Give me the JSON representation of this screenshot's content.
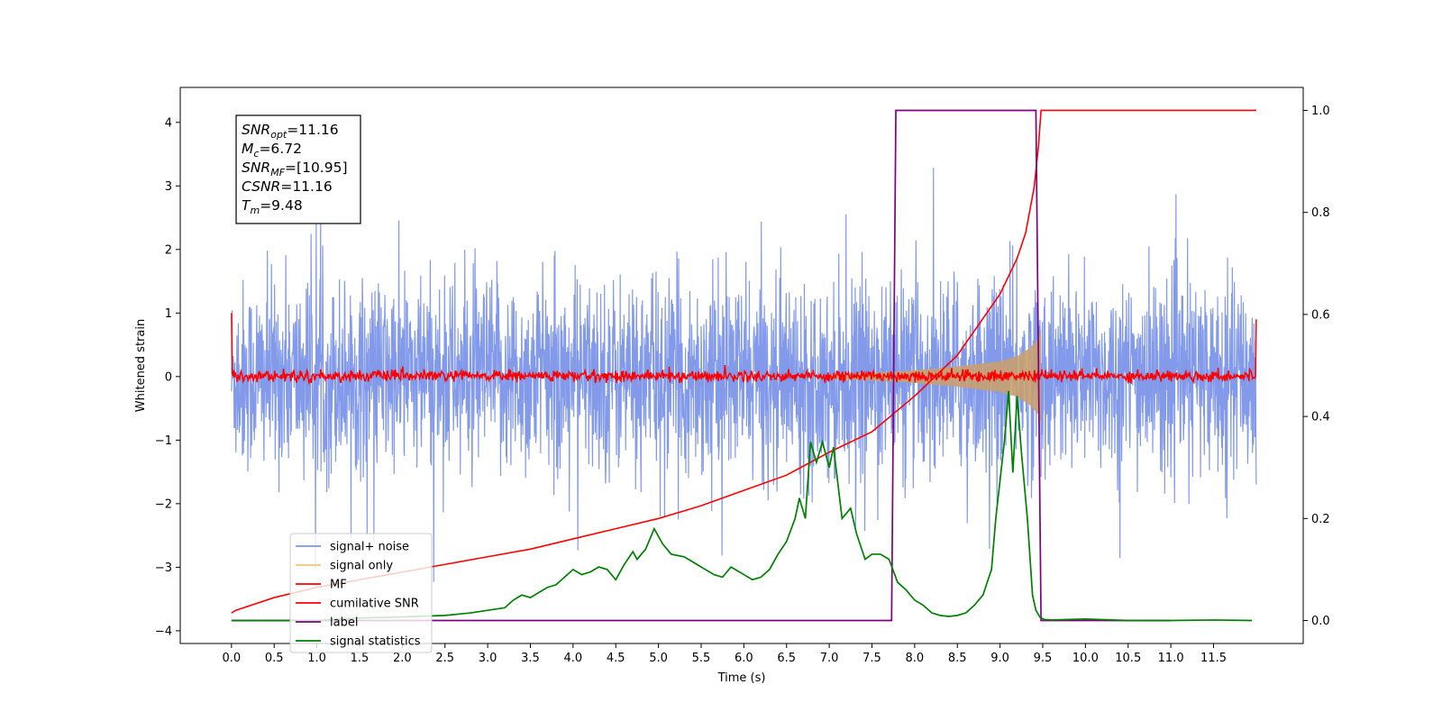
{
  "chart_data": {
    "type": "line",
    "xlabel": "Time (s)",
    "ylabel": "Whitened strain",
    "xlim": [
      -0.6,
      12.55
    ],
    "ylim_left": [
      -4.2,
      4.55
    ],
    "ylim_right": [
      -0.045,
      1.045
    ],
    "x_ticks": [
      0.0,
      0.5,
      1.0,
      1.5,
      2.0,
      2.5,
      3.0,
      3.5,
      4.0,
      4.5,
      5.0,
      5.5,
      6.0,
      6.5,
      7.0,
      7.5,
      8.0,
      8.5,
      9.0,
      9.5,
      10.0,
      10.5,
      11.0,
      11.5
    ],
    "x_tick_labels": [
      "0.0",
      "0.5",
      "1.0",
      "1.5",
      "2.0",
      "2.5",
      "3.0",
      "3.5",
      "4.0",
      "4.5",
      "5.0",
      "5.5",
      "6.0",
      "6.5",
      "7.0",
      "7.5",
      "8.0",
      "8.5",
      "9.0",
      "9.5",
      "10.0",
      "10.5",
      "11.0",
      "11.5"
    ],
    "y_left_ticks": [
      4,
      3,
      2,
      1,
      0,
      -1,
      -2,
      -3,
      -4
    ],
    "y_left_tick_labels": [
      "4",
      "3",
      "2",
      "1",
      "0",
      "−1",
      "−2",
      "−3",
      "−4"
    ],
    "y_right_ticks": [
      1.0,
      0.8,
      0.6,
      0.4,
      0.2,
      0.0
    ],
    "y_right_tick_labels": [
      "1.0",
      "0.8",
      "0.6",
      "0.4",
      "0.2",
      "0.0"
    ],
    "annotation": {
      "lines": [
        {
          "main": "SNR",
          "sub": "opt",
          "value": "=11.16"
        },
        {
          "main": "M",
          "sub": "c",
          "value": "=6.72"
        },
        {
          "main": "SNR",
          "sub": "MF",
          "value": "=[10.95]"
        },
        {
          "main": "CSNR",
          "sub": "",
          "value": "=11.16"
        },
        {
          "main": "T",
          "sub": "m",
          "value": "=9.48"
        }
      ]
    },
    "legend": {
      "location": "lower-left",
      "entries": [
        {
          "label": "signal+ noise",
          "color": "#7b95e8"
        },
        {
          "label": "signal only",
          "color": "#f2c277"
        },
        {
          "label": "MF",
          "color": "#ff0000"
        },
        {
          "label": "cumilative SNR",
          "color": "#ff0000"
        },
        {
          "label": "label",
          "color": "#800080"
        },
        {
          "label": "signal statistics",
          "color": "#008000"
        }
      ]
    },
    "series": [
      {
        "name": "signal+ noise",
        "axis": "left",
        "color": "#7b95e8",
        "x_range": [
          0.0,
          12.0
        ],
        "typical_envelope": [
          -1.5,
          1.5
        ],
        "peak_max": 3.9,
        "peak_min": -3.65
      },
      {
        "name": "signal only",
        "axis": "left",
        "color": "#c8a070",
        "x": [
          7.0,
          7.5,
          8.0,
          8.5,
          9.0,
          9.2,
          9.35,
          9.45,
          9.48
        ],
        "envelope": [
          0.03,
          0.06,
          0.1,
          0.16,
          0.24,
          0.32,
          0.45,
          0.6,
          0.75
        ]
      },
      {
        "name": "MF",
        "axis": "left",
        "color": "#ff0000",
        "x_range": [
          0.0,
          12.0
        ],
        "typical_envelope": [
          -0.1,
          0.12
        ],
        "start_value": 1.0,
        "end_value": 0.9
      },
      {
        "name": "cumilative SNR",
        "axis": "right",
        "color": "#ff0000",
        "x": [
          0.0,
          0.05,
          0.5,
          1.0,
          1.5,
          2.0,
          2.5,
          3.0,
          3.5,
          4.0,
          4.5,
          5.0,
          5.5,
          6.0,
          6.5,
          7.0,
          7.5,
          8.0,
          8.5,
          9.0,
          9.2,
          9.3,
          9.4,
          9.45,
          9.48,
          12.0
        ],
        "y": [
          0.015,
          0.02,
          0.045,
          0.065,
          0.08,
          0.095,
          0.11,
          0.125,
          0.14,
          0.16,
          0.18,
          0.2,
          0.225,
          0.255,
          0.285,
          0.33,
          0.37,
          0.44,
          0.52,
          0.64,
          0.71,
          0.76,
          0.85,
          0.93,
          1.0,
          1.0
        ]
      },
      {
        "name": "label",
        "axis": "right",
        "color": "#800080",
        "x": [
          0.0,
          7.73,
          7.78,
          9.42,
          9.48,
          11.0
        ],
        "y": [
          0.0,
          0.0,
          1.0,
          1.0,
          0.0,
          0.0
        ]
      },
      {
        "name": "signal statistics",
        "axis": "right",
        "color": "#008000",
        "x": [
          0.0,
          0.5,
          1.0,
          1.5,
          2.0,
          2.5,
          2.8,
          3.0,
          3.2,
          3.3,
          3.4,
          3.5,
          3.6,
          3.7,
          3.8,
          3.9,
          4.0,
          4.1,
          4.2,
          4.3,
          4.4,
          4.5,
          4.6,
          4.7,
          4.75,
          4.85,
          4.95,
          5.05,
          5.15,
          5.3,
          5.45,
          5.55,
          5.65,
          5.75,
          5.85,
          6.0,
          6.1,
          6.2,
          6.3,
          6.4,
          6.5,
          6.6,
          6.65,
          6.72,
          6.78,
          6.85,
          6.92,
          7.0,
          7.05,
          7.15,
          7.25,
          7.32,
          7.42,
          7.5,
          7.6,
          7.7,
          7.8,
          7.9,
          8.0,
          8.1,
          8.2,
          8.3,
          8.4,
          8.5,
          8.6,
          8.7,
          8.8,
          8.9,
          8.95,
          9.05,
          9.1,
          9.15,
          9.2,
          9.25,
          9.32,
          9.38,
          9.42,
          9.47,
          9.52,
          9.6,
          9.8,
          10.0,
          10.5,
          11.0,
          11.5,
          11.95
        ],
        "y": [
          0.0,
          0.0,
          0.0,
          0.005,
          0.007,
          0.01,
          0.015,
          0.02,
          0.025,
          0.04,
          0.05,
          0.045,
          0.055,
          0.065,
          0.07,
          0.085,
          0.1,
          0.09,
          0.095,
          0.105,
          0.1,
          0.08,
          0.11,
          0.135,
          0.12,
          0.14,
          0.18,
          0.15,
          0.13,
          0.125,
          0.11,
          0.1,
          0.09,
          0.085,
          0.105,
          0.09,
          0.08,
          0.085,
          0.1,
          0.13,
          0.155,
          0.2,
          0.24,
          0.2,
          0.35,
          0.31,
          0.35,
          0.3,
          0.34,
          0.2,
          0.22,
          0.17,
          0.12,
          0.13,
          0.13,
          0.12,
          0.075,
          0.06,
          0.04,
          0.03,
          0.015,
          0.01,
          0.008,
          0.01,
          0.015,
          0.03,
          0.05,
          0.1,
          0.2,
          0.35,
          0.45,
          0.29,
          0.44,
          0.33,
          0.2,
          0.05,
          0.02,
          0.006,
          0.002,
          0.001,
          0.002,
          0.003,
          0.0,
          0.0,
          0.001,
          0.0
        ]
      }
    ]
  }
}
